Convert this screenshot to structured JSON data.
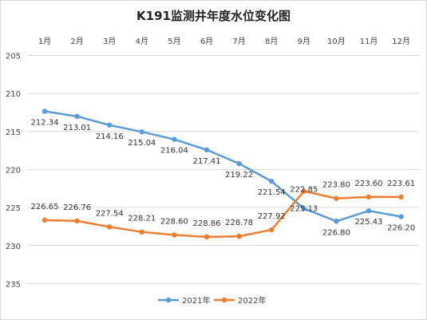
{
  "chart_data": {
    "type": "line",
    "title": "K191监测井年度水位变化图",
    "categories": [
      "1月",
      "2月",
      "3月",
      "4月",
      "5月",
      "6月",
      "7月",
      "8月",
      "9月",
      "10月",
      "11月",
      "12月"
    ],
    "y_ticks": [
      "205",
      "210",
      "215",
      "220",
      "225",
      "230",
      "235"
    ],
    "ylim": [
      205,
      236.5
    ],
    "y_inverted": true,
    "x_axis_position": "top",
    "grid": "horizontal",
    "legend_position": "bottom",
    "series": [
      {
        "name": "2021年",
        "color": "#5b9bd5",
        "values": [
          212.34,
          213.01,
          214.16,
          215.04,
          216.04,
          217.41,
          219.22,
          221.54,
          225.13,
          226.8,
          225.43,
          226.2
        ],
        "labels": [
          "212.34",
          "213.01",
          "214.16",
          "215.04",
          "216.04",
          "217.41",
          "219.22",
          "221.54",
          "225.13",
          "226.80",
          "225.43",
          "226.20"
        ]
      },
      {
        "name": "2022年",
        "color": "#ed7d31",
        "values": [
          226.65,
          226.76,
          227.54,
          228.21,
          228.6,
          228.86,
          228.78,
          227.92,
          222.85,
          223.8,
          223.6,
          223.61
        ],
        "labels": [
          "226.65",
          "226.76",
          "227.54",
          "228.21",
          "228.60",
          "228.86",
          "228.78",
          "227.92",
          "222.85",
          "223.80",
          "223.60",
          "223.61"
        ]
      }
    ]
  }
}
